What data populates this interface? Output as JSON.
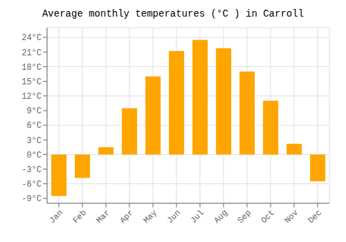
{
  "chart_data": {
    "type": "bar",
    "title": "Average monthly temperatures (°C ) in Carroll",
    "categories": [
      "Jan",
      "Feb",
      "Mar",
      "Apr",
      "May",
      "Jun",
      "Jul",
      "Aug",
      "Sep",
      "Oct",
      "Nov",
      "Dec"
    ],
    "values": [
      -8.5,
      -4.8,
      1.5,
      9.5,
      16.0,
      21.2,
      23.5,
      21.8,
      17.0,
      11.0,
      2.2,
      -5.5
    ],
    "color": "#FFA500",
    "ylim": [
      -10,
      26
    ],
    "yticks": [
      {
        "value": -9,
        "label": "-9°C"
      },
      {
        "value": -6,
        "label": "-6°C"
      },
      {
        "value": -3,
        "label": "-3°C"
      },
      {
        "value": 0,
        "label": "0°C"
      },
      {
        "value": 3,
        "label": "3°C"
      },
      {
        "value": 6,
        "label": "6°C"
      },
      {
        "value": 9,
        "label": "9°C"
      },
      {
        "value": 12,
        "label": "12°C"
      },
      {
        "value": 15,
        "label": "15°C"
      },
      {
        "value": 18,
        "label": "18°C"
      },
      {
        "value": 21,
        "label": "21°C"
      },
      {
        "value": 24,
        "label": "24°C"
      }
    ],
    "grid": true
  }
}
